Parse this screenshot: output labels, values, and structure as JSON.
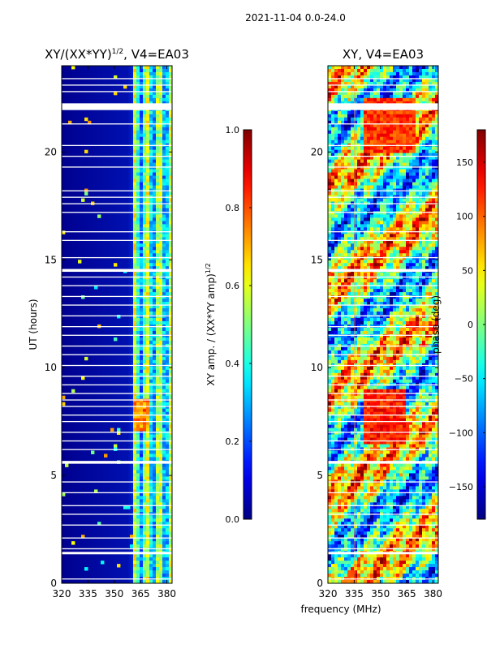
{
  "figure": {
    "suptitle": "2021-11-04 0.0-24.0",
    "shared_xlabel": "frequency (MHz)"
  },
  "chart_data": [
    {
      "type": "heatmap",
      "title_prefix": "XY/(XX*YY)",
      "title_exponent": "1/2",
      "title_suffix": ", V4=EA03",
      "xlabel": "frequency (MHz)",
      "ylabel": "UT (hours)",
      "xlim": [
        320,
        383
      ],
      "ylim": [
        0,
        24
      ],
      "xticks": [
        320,
        335,
        350,
        365,
        380
      ],
      "yticks": [
        0,
        5,
        10,
        15,
        20
      ],
      "colorbar": {
        "label_text": "XY amp. / (XX*YY amp)",
        "label_exponent": "1/2",
        "range": [
          0.0,
          1.0
        ],
        "ticks": [
          "0.0",
          "0.2",
          "0.4",
          "0.6",
          "0.8",
          "1.0"
        ],
        "colormap": "jet"
      }
    },
    {
      "type": "heatmap",
      "title": "XY, V4=EA03",
      "xlabel": "frequency (MHz)",
      "ylabel": "",
      "xlim": [
        320,
        383
      ],
      "ylim": [
        0,
        24
      ],
      "xticks": [
        320,
        335,
        350,
        365,
        380
      ],
      "yticks": [
        0,
        5,
        10,
        15,
        20
      ],
      "colorbar": {
        "label_text": "phase (deg)",
        "range": [
          -180,
          180
        ],
        "ticks": [
          "-150",
          "-100",
          "-50",
          "0",
          "50",
          "100",
          "150"
        ],
        "colormap": "jet"
      }
    }
  ],
  "jet_stops": [
    "#00007f",
    "#0000ff",
    "#007fff",
    "#00ffff",
    "#7fff7f",
    "#ffff00",
    "#ff7f00",
    "#ff0000",
    "#7f0000"
  ]
}
